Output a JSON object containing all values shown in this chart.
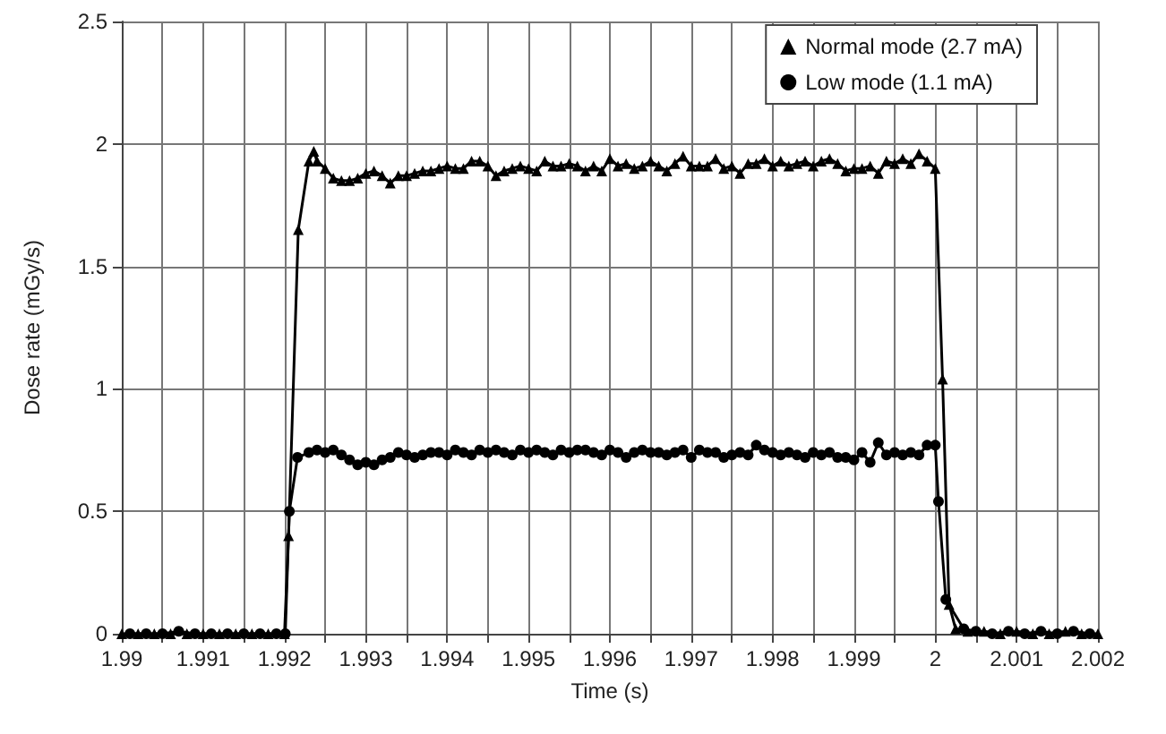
{
  "chart_data": {
    "type": "line",
    "xlabel": "Time (s)",
    "ylabel": "Dose rate (mGy/s)",
    "xlim": [
      1.99,
      2.002
    ],
    "xticks": [
      {
        "value": 1.99,
        "label": "1.99"
      },
      {
        "value": 1.9905,
        "label": null
      },
      {
        "value": 1.991,
        "label": "1.991"
      },
      {
        "value": 1.9915,
        "label": null
      },
      {
        "value": 1.992,
        "label": "1.992"
      },
      {
        "value": 1.9925,
        "label": null
      },
      {
        "value": 1.993,
        "label": "1.993"
      },
      {
        "value": 1.9935,
        "label": null
      },
      {
        "value": 1.994,
        "label": "1.994"
      },
      {
        "value": 1.9945,
        "label": null
      },
      {
        "value": 1.995,
        "label": "1.995"
      },
      {
        "value": 1.9955,
        "label": null
      },
      {
        "value": 1.996,
        "label": "1.996"
      },
      {
        "value": 1.9965,
        "label": null
      },
      {
        "value": 1.997,
        "label": "1.997"
      },
      {
        "value": 1.9975,
        "label": null
      },
      {
        "value": 1.998,
        "label": "1.998"
      },
      {
        "value": 1.9985,
        "label": null
      },
      {
        "value": 1.999,
        "label": "1.999"
      },
      {
        "value": 1.9995,
        "label": null
      },
      {
        "value": 2.0,
        "label": "2"
      },
      {
        "value": 2.0005,
        "label": null
      },
      {
        "value": 2.001,
        "label": "2.001"
      },
      {
        "value": 2.0015,
        "label": null
      },
      {
        "value": 2.002,
        "label": "2.002"
      }
    ],
    "ylim": [
      0,
      2.5
    ],
    "yticks": [
      0,
      0.5,
      1,
      1.5,
      2,
      2.5
    ],
    "grid": true,
    "legend": "top right",
    "line_style": "solid",
    "series": [
      {
        "name": "Normal mode (2.7 mA)",
        "color": "#000000",
        "marker": "triangle",
        "x": [
          1.99,
          1.9902,
          1.9904,
          1.9906,
          1.9908,
          1.991,
          1.9912,
          1.9914,
          1.9916,
          1.9918,
          1.992,
          1.99205,
          1.99217,
          1.9923,
          1.99236,
          1.9924,
          1.9925,
          1.9926,
          1.9927,
          1.9928,
          1.9929,
          1.993,
          1.9931,
          1.9932,
          1.9933,
          1.9934,
          1.9935,
          1.9936,
          1.9937,
          1.9938,
          1.9939,
          1.994,
          1.9941,
          1.9942,
          1.9943,
          1.9944,
          1.9945,
          1.9946,
          1.9947,
          1.9948,
          1.9949,
          1.995,
          1.9951,
          1.9952,
          1.9953,
          1.9954,
          1.9955,
          1.9956,
          1.9957,
          1.9958,
          1.9959,
          1.996,
          1.9961,
          1.9962,
          1.9963,
          1.9964,
          1.9965,
          1.9966,
          1.9967,
          1.9968,
          1.9969,
          1.997,
          1.9971,
          1.9972,
          1.9973,
          1.9974,
          1.9975,
          1.9976,
          1.9977,
          1.9978,
          1.9979,
          1.998,
          1.9981,
          1.9982,
          1.9983,
          1.9984,
          1.9985,
          1.9986,
          1.9987,
          1.9988,
          1.9989,
          1.999,
          1.9991,
          1.9992,
          1.9993,
          1.9994,
          1.9995,
          1.9996,
          1.9997,
          1.9998,
          1.9999,
          2.0,
          2.00009,
          2.00017,
          2.00025,
          2.0004,
          2.0006,
          2.0008,
          2.001,
          2.0012,
          2.0014,
          2.0016,
          2.0018,
          2.002
        ],
        "values": [
          0,
          0,
          0,
          0,
          0,
          0,
          0,
          0,
          0,
          0,
          0,
          0.4,
          1.65,
          1.93,
          1.97,
          1.93,
          1.9,
          1.86,
          1.85,
          1.85,
          1.86,
          1.88,
          1.89,
          1.87,
          1.84,
          1.87,
          1.87,
          1.88,
          1.89,
          1.89,
          1.9,
          1.91,
          1.9,
          1.9,
          1.93,
          1.93,
          1.91,
          1.87,
          1.89,
          1.9,
          1.91,
          1.9,
          1.89,
          1.93,
          1.91,
          1.91,
          1.92,
          1.91,
          1.89,
          1.91,
          1.89,
          1.94,
          1.91,
          1.92,
          1.9,
          1.91,
          1.93,
          1.91,
          1.89,
          1.92,
          1.95,
          1.91,
          1.91,
          1.91,
          1.94,
          1.9,
          1.91,
          1.88,
          1.92,
          1.92,
          1.94,
          1.91,
          1.93,
          1.91,
          1.92,
          1.93,
          1.91,
          1.93,
          1.94,
          1.92,
          1.89,
          1.9,
          1.9,
          1.91,
          1.88,
          1.93,
          1.92,
          1.94,
          1.92,
          1.96,
          1.93,
          1.9,
          1.04,
          0.12,
          0.02,
          0.01,
          0.01,
          0,
          0.01,
          0,
          0,
          0.01,
          0,
          0
        ]
      },
      {
        "name": "Low mode (1.1 mA)",
        "color": "#000000",
        "marker": "circle",
        "x": [
          1.9901,
          1.9903,
          1.9905,
          1.9907,
          1.9909,
          1.9911,
          1.9913,
          1.9915,
          1.9917,
          1.9919,
          1.99201,
          1.99206,
          1.99216,
          1.9923,
          1.9924,
          1.9925,
          1.9926,
          1.9927,
          1.9928,
          1.9929,
          1.993,
          1.9931,
          1.9932,
          1.9933,
          1.9934,
          1.9935,
          1.9936,
          1.9937,
          1.9938,
          1.9939,
          1.994,
          1.9941,
          1.9942,
          1.9943,
          1.9944,
          1.9945,
          1.9946,
          1.9947,
          1.9948,
          1.9949,
          1.995,
          1.9951,
          1.9952,
          1.9953,
          1.9954,
          1.9955,
          1.9956,
          1.9957,
          1.9958,
          1.9959,
          1.996,
          1.9961,
          1.9962,
          1.9963,
          1.9964,
          1.9965,
          1.9966,
          1.9967,
          1.9968,
          1.9969,
          1.997,
          1.9971,
          1.9972,
          1.9973,
          1.9974,
          1.9975,
          1.9976,
          1.9977,
          1.9978,
          1.9979,
          1.998,
          1.9981,
          1.9982,
          1.9983,
          1.9984,
          1.9985,
          1.9986,
          1.9987,
          1.9988,
          1.9989,
          1.999,
          1.9991,
          1.9992,
          1.9993,
          1.9994,
          1.9995,
          1.9996,
          1.9997,
          1.9998,
          1.9999,
          2.0,
          2.00004,
          2.00013,
          2.00035,
          2.0005,
          2.0007,
          2.0009,
          2.0011,
          2.0013,
          2.0015,
          2.0017,
          2.0019
        ],
        "values": [
          0,
          0,
          0,
          0.01,
          0,
          0,
          0,
          0,
          0,
          0,
          0,
          0.5,
          0.72,
          0.74,
          0.75,
          0.74,
          0.75,
          0.73,
          0.71,
          0.69,
          0.7,
          0.69,
          0.71,
          0.72,
          0.74,
          0.73,
          0.72,
          0.73,
          0.74,
          0.74,
          0.73,
          0.75,
          0.74,
          0.73,
          0.75,
          0.74,
          0.75,
          0.74,
          0.73,
          0.75,
          0.74,
          0.75,
          0.74,
          0.73,
          0.75,
          0.74,
          0.75,
          0.75,
          0.74,
          0.73,
          0.75,
          0.74,
          0.72,
          0.74,
          0.75,
          0.74,
          0.74,
          0.73,
          0.74,
          0.75,
          0.72,
          0.75,
          0.74,
          0.74,
          0.72,
          0.73,
          0.74,
          0.73,
          0.77,
          0.75,
          0.74,
          0.73,
          0.74,
          0.73,
          0.72,
          0.74,
          0.73,
          0.74,
          0.72,
          0.72,
          0.71,
          0.74,
          0.7,
          0.78,
          0.73,
          0.74,
          0.73,
          0.74,
          0.73,
          0.77,
          0.77,
          0.54,
          0.14,
          0.02,
          0.01,
          0,
          0.01,
          0,
          0.01,
          0,
          0.01,
          0
        ]
      }
    ]
  }
}
